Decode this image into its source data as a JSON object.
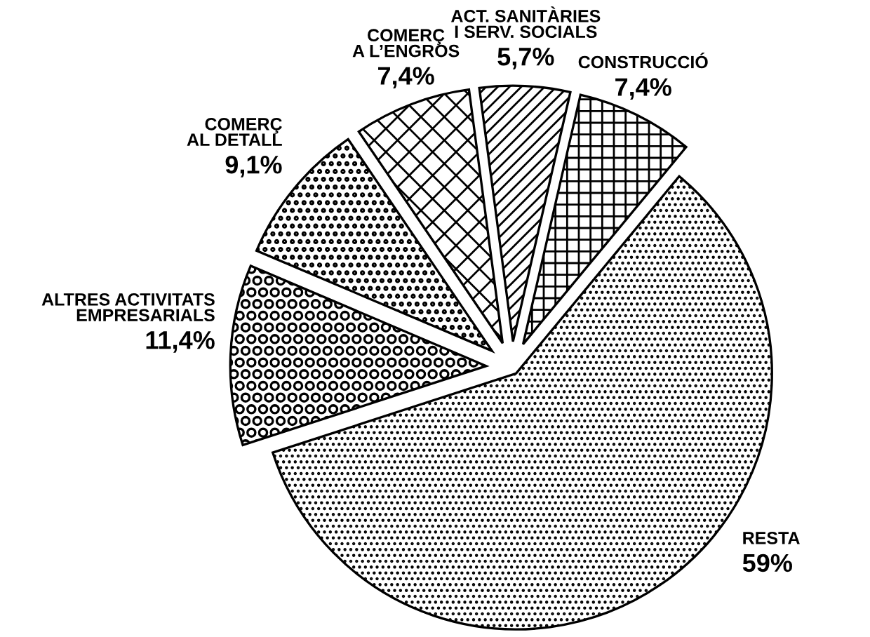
{
  "chart_data": {
    "type": "pie",
    "categories": [
      "RESTA",
      "CONSTRUCCIÓ",
      "ACT. SANITÀRIES\nI SERV. SOCIALS",
      "COMERÇ\nA L’ENGROS",
      "COMERÇ\nAL DETALL",
      "ALTRES ACTIVITATS\nEMPRESARIALS"
    ],
    "values": [
      59,
      7.4,
      5.7,
      7.4,
      9.1,
      11.4
    ],
    "value_labels": [
      "59%",
      "7,4%",
      "5,7%",
      "7,4%",
      "9,1%",
      "11,4%"
    ],
    "colors": [
      "#000000",
      "#000000",
      "#000000",
      "#000000",
      "#000000",
      "#000000"
    ]
  }
}
